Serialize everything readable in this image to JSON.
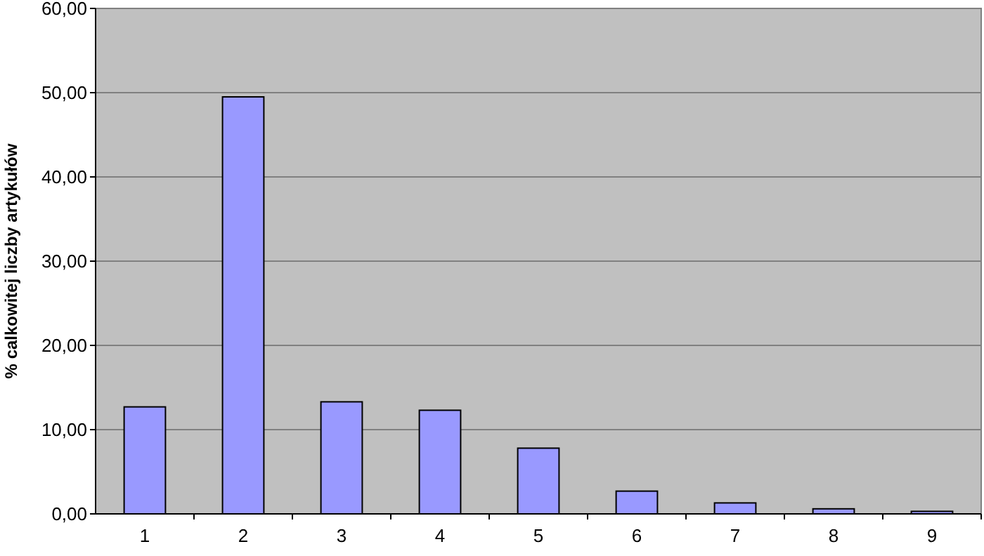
{
  "chart_data": {
    "type": "bar",
    "ylabel": "% calkowitej liczby artykułów",
    "categories": [
      "1",
      "2",
      "3",
      "4",
      "5",
      "6",
      "7",
      "8",
      "9"
    ],
    "values": [
      12.7,
      49.5,
      13.3,
      12.3,
      7.8,
      2.7,
      1.3,
      0.6,
      0.3
    ],
    "color": "#9999ff",
    "ylim": [
      0,
      60
    ],
    "yticks": [
      {
        "value": 0,
        "label": "0,00"
      },
      {
        "value": 10,
        "label": "10,00"
      },
      {
        "value": 20,
        "label": "20,00"
      },
      {
        "value": 30,
        "label": "30,00"
      },
      {
        "value": 40,
        "label": "40,00"
      },
      {
        "value": 50,
        "label": "50,00"
      },
      {
        "value": 60,
        "label": "60,00"
      }
    ],
    "grid": "y"
  }
}
